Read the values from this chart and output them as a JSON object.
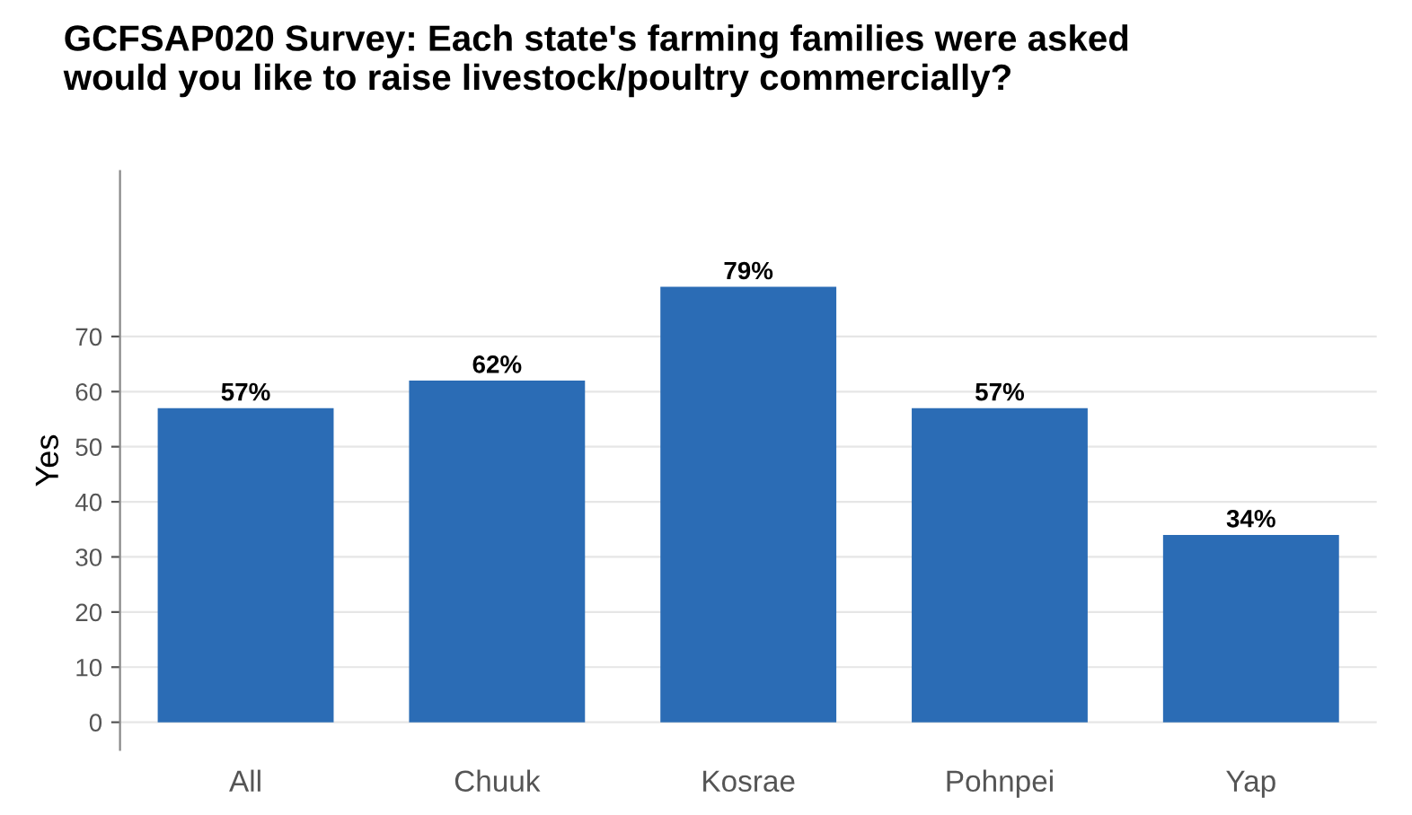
{
  "chart_data": {
    "type": "bar",
    "title": "GCFSAP020 Survey: Each state's farming families were asked\nwould you like to raise livestock/poultry commercially?",
    "ylabel": "Yes",
    "categories": [
      "All",
      "Chuuk",
      "Kosrae",
      "Pohnpei",
      "Yap"
    ],
    "values": [
      57,
      62,
      79,
      57,
      34
    ],
    "value_labels": [
      "57%",
      "62%",
      "79%",
      "57%",
      "34%"
    ],
    "color": "#2b6cb5",
    "ylim": [
      -5,
      100
    ],
    "yticks": [
      0,
      10,
      20,
      30,
      40,
      50,
      60,
      70
    ],
    "grid": "y"
  }
}
